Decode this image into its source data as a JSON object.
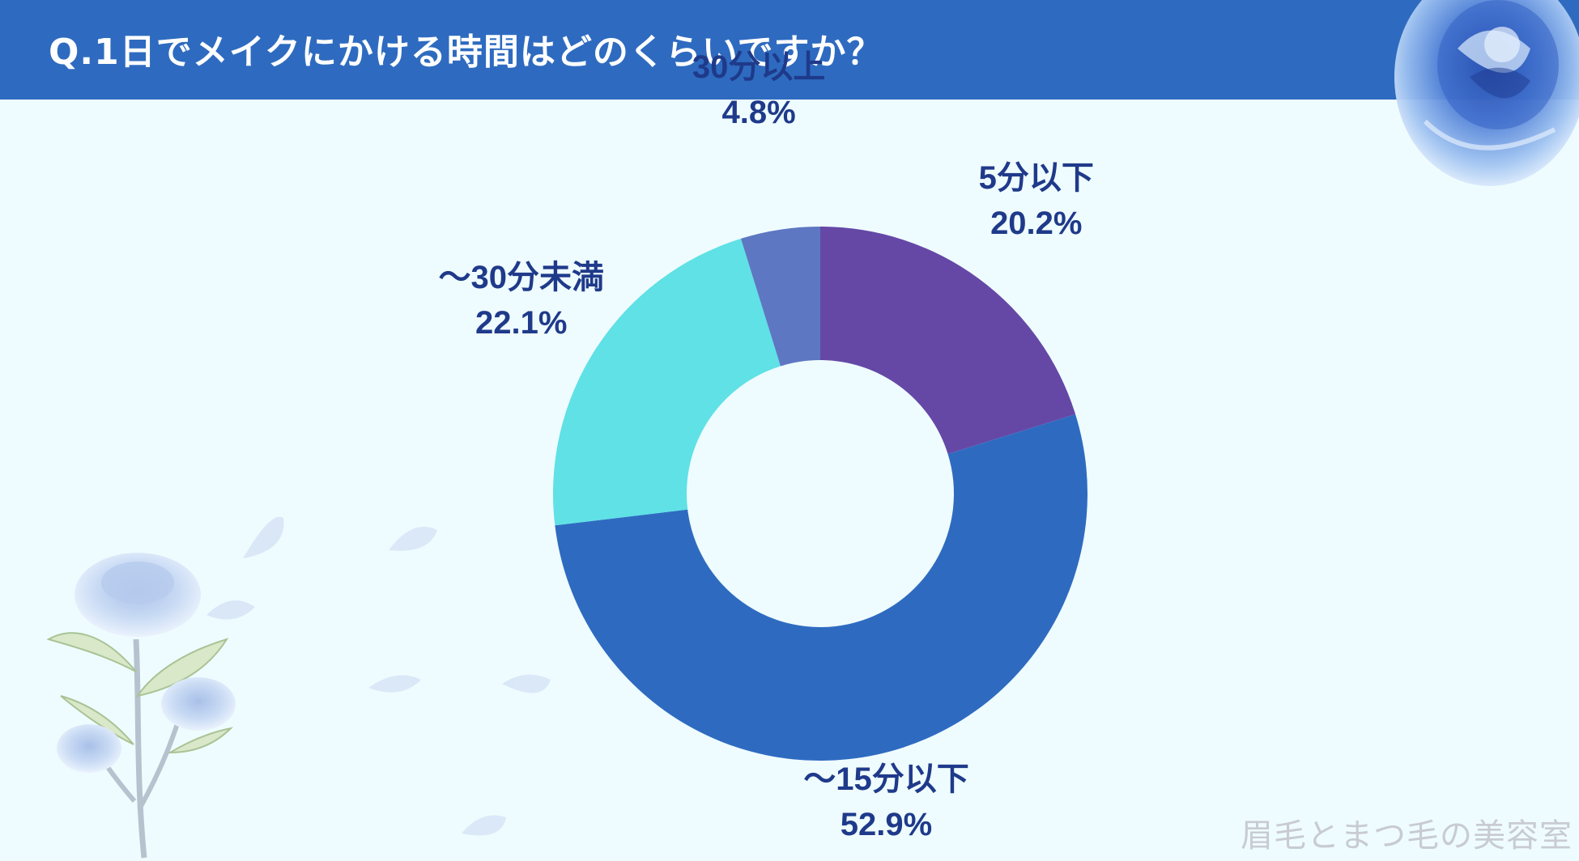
{
  "header": {
    "title": "Q.1日でメイクにかける時間はどのくらいですか？"
  },
  "chart_data": {
    "type": "pie",
    "donut": true,
    "title": "Q.1日でメイクにかける時間はどのくらいですか？",
    "categories": [
      "5分以下",
      "～15分以下",
      "～30分未満",
      "30分以上"
    ],
    "values": [
      20.2,
      52.9,
      22.1,
      4.8
    ],
    "value_labels": [
      "20.2%",
      "52.9%",
      "22.1%",
      "4.8%"
    ],
    "colors": [
      "#6548a6",
      "#2e6bc0",
      "#5fe1e6",
      "#5e77c2"
    ],
    "legend": "none"
  },
  "watermark": "眉毛とまつ毛の美容室",
  "theme": {
    "header_bg": "#2e6bc0",
    "page_bg": "#effcff",
    "label_color": "#1f3a8a"
  },
  "decorations": {
    "top_right": "blue-rose-watercolor-icon",
    "bottom_left": "blue-rose-stem-icon",
    "petals": "falling-petals-icon"
  }
}
